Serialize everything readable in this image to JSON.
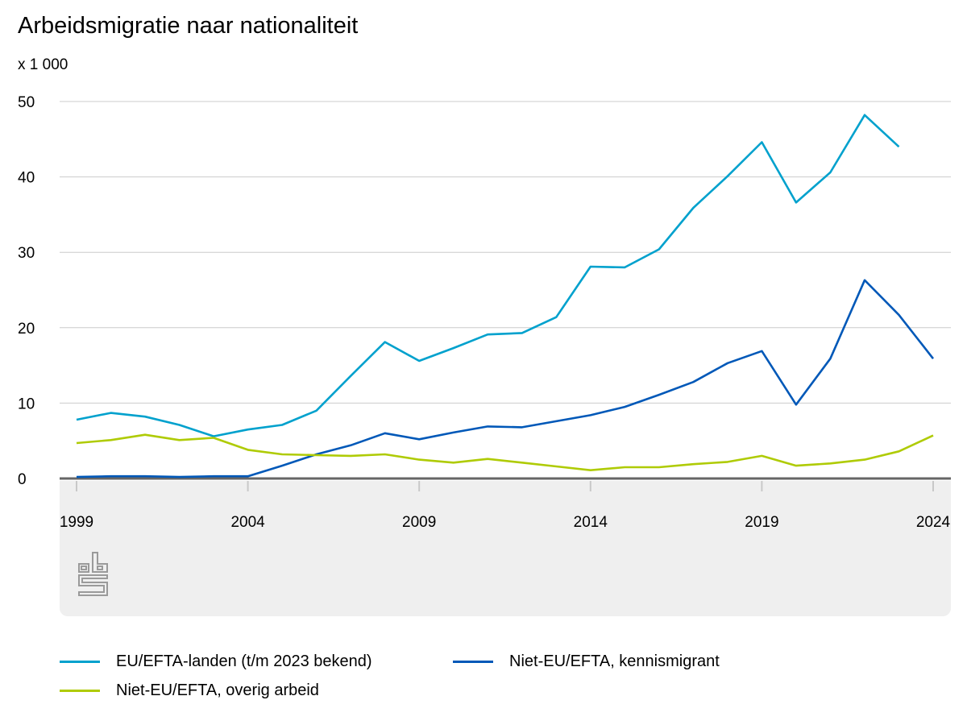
{
  "chart_data": {
    "type": "line",
    "title": "Arbeidsmigratie naar nationaliteit",
    "ylabel": "x 1 000",
    "xlabel": "",
    "ylim": [
      0,
      50
    ],
    "yticks": [
      0,
      10,
      20,
      30,
      40,
      50
    ],
    "xticks": [
      1999,
      2004,
      2009,
      2014,
      2019,
      2024
    ],
    "x": [
      1999,
      2000,
      2001,
      2002,
      2003,
      2004,
      2005,
      2006,
      2007,
      2008,
      2009,
      2010,
      2011,
      2012,
      2013,
      2014,
      2015,
      2016,
      2017,
      2018,
      2019,
      2020,
      2021,
      2022,
      2023,
      2024
    ],
    "grid": true,
    "legend_position": "bottom",
    "series": [
      {
        "name": "EU/EFTA-landen (t/m 2023 bekend)",
        "color": "#00a1cd",
        "values": [
          7.8,
          8.7,
          8.2,
          7.1,
          5.6,
          6.5,
          7.1,
          9.0,
          13.6,
          18.1,
          15.6,
          17.3,
          19.1,
          19.3,
          21.4,
          28.1,
          28.0,
          30.4,
          35.9,
          40.1,
          44.6,
          36.6,
          40.6,
          48.2,
          44.0,
          null
        ]
      },
      {
        "name": "Niet-EU/EFTA, kennismigrant",
        "color": "#0058b8",
        "values": [
          0.2,
          0.3,
          0.3,
          0.2,
          0.3,
          0.3,
          1.7,
          3.2,
          4.4,
          6.0,
          5.2,
          6.1,
          6.9,
          6.8,
          7.6,
          8.4,
          9.5,
          11.1,
          12.8,
          15.3,
          16.9,
          9.8,
          15.9,
          26.3,
          21.7,
          15.9
        ]
      },
      {
        "name": "Niet-EU/EFTA, overig arbeid",
        "color": "#afcb05",
        "values": [
          4.7,
          5.1,
          5.8,
          5.1,
          5.4,
          3.8,
          3.2,
          3.1,
          3.0,
          3.2,
          2.5,
          2.1,
          2.6,
          2.1,
          1.6,
          1.1,
          1.5,
          1.5,
          1.9,
          2.2,
          3.0,
          1.7,
          2.0,
          2.5,
          3.6,
          5.7
        ]
      }
    ]
  },
  "logo": "cbs"
}
